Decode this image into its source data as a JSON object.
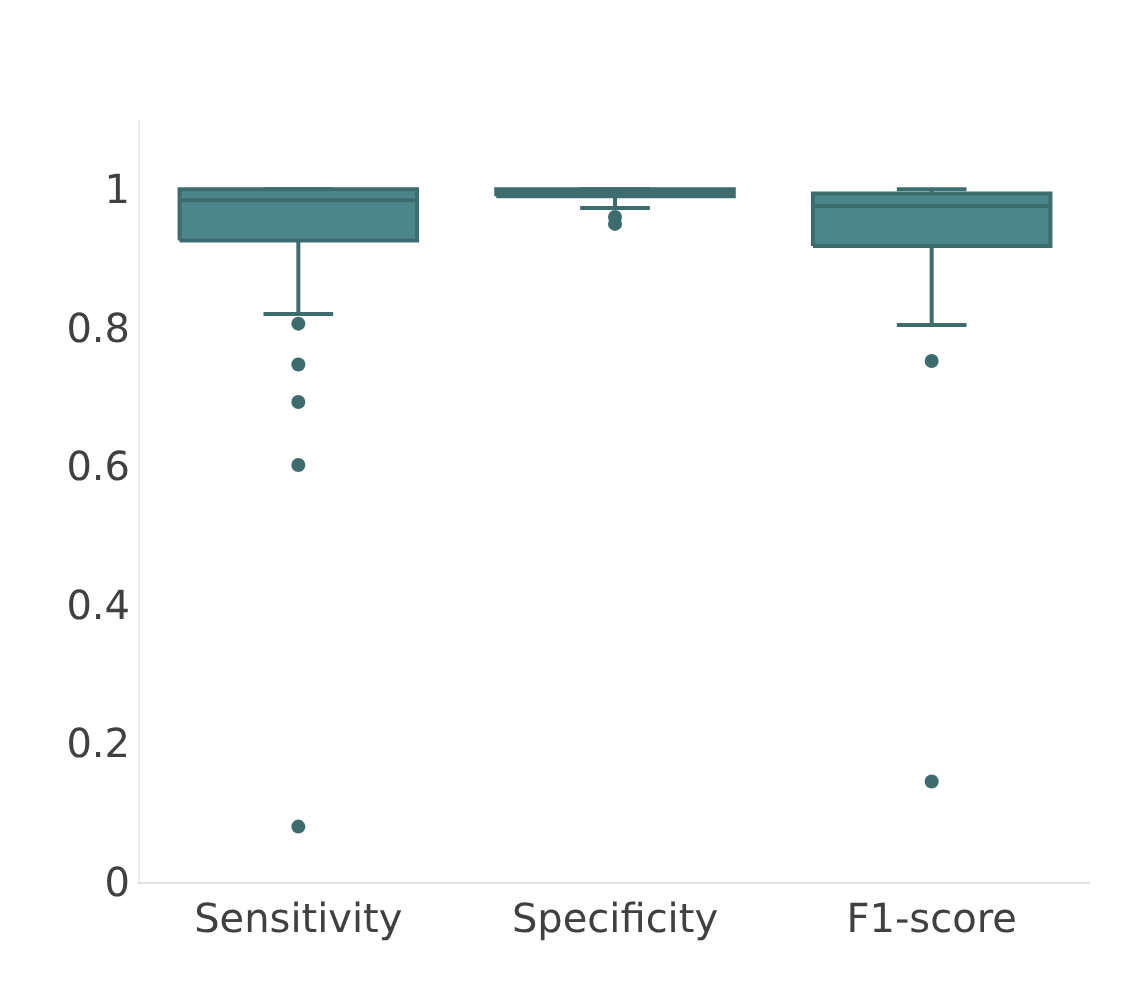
{
  "chart_data": {
    "type": "box",
    "categories": [
      "Sensitivity",
      "Specificity",
      "F1-score"
    ],
    "series": [
      {
        "color": "#4b878a",
        "boxes": [
          {
            "low": 0.82,
            "q1": 0.926,
            "median": 0.984,
            "q3": 1.0,
            "high": 1.0,
            "outliers": [
              0.806,
              0.747,
              0.693,
              0.602,
              0.08
            ]
          },
          {
            "low": 0.973,
            "q1": 0.99,
            "median": 0.995,
            "q3": 1.0,
            "high": 1.0,
            "outliers": [
              0.96,
              0.95
            ]
          },
          {
            "low": 0.804,
            "q1": 0.918,
            "median": 0.976,
            "q3": 0.994,
            "high": 1.0,
            "outliers": [
              0.752,
              0.145
            ]
          }
        ]
      }
    ],
    "ylim": [
      0,
      1.1
    ],
    "yticks": [
      0,
      0.2,
      0.4,
      0.6,
      0.8,
      1
    ]
  }
}
